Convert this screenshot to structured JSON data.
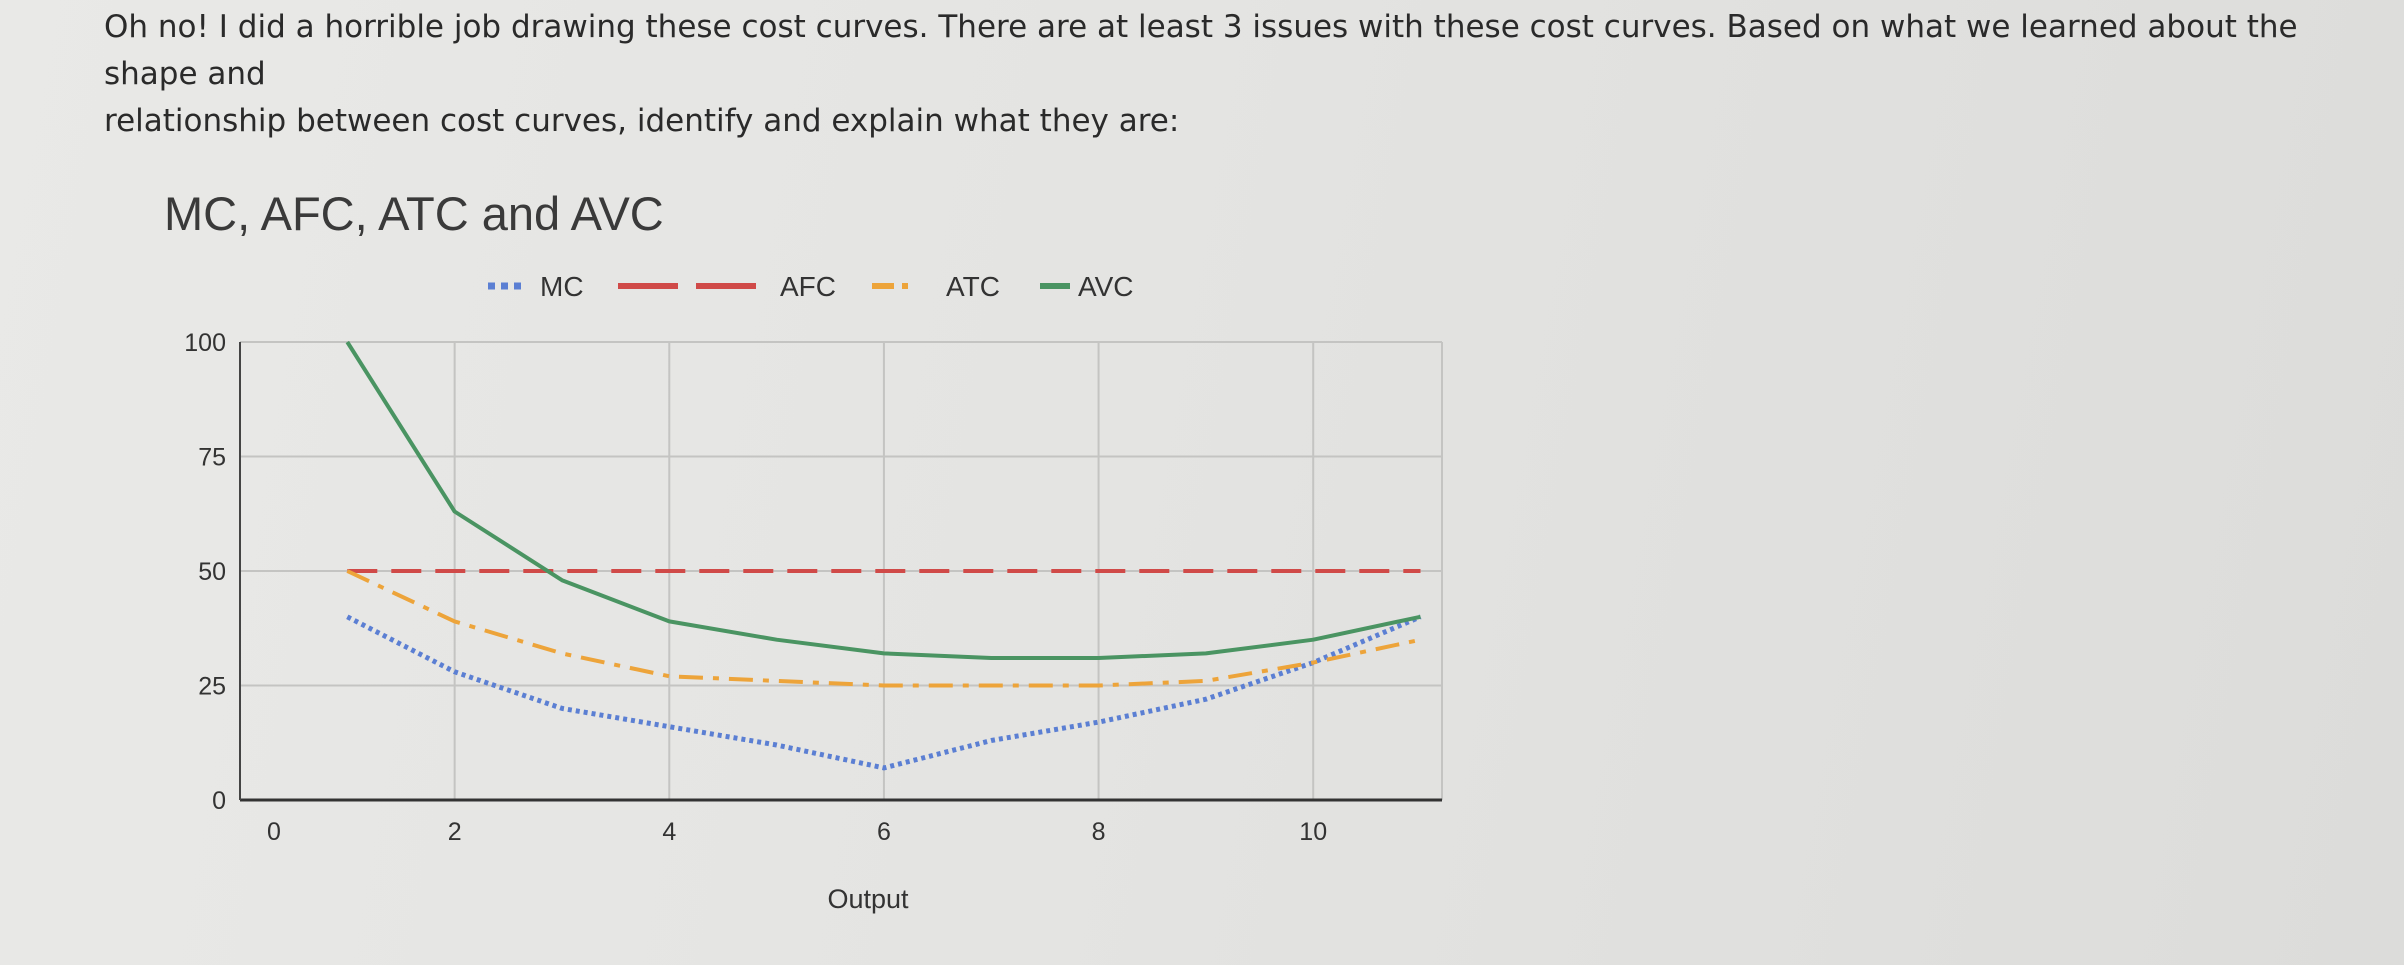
{
  "question": {
    "line1": "Oh no! I did a horrible job drawing these cost curves. There are at least 3 issues with these cost curves. Based on what we learned about the shape and",
    "line2": "relationship between cost curves, identify and explain what they are:"
  },
  "chart_data": {
    "type": "line",
    "title": "MC, AFC, ATC and AVC",
    "xlabel": "Output",
    "ylabel": "",
    "xlim": [
      0,
      11.2
    ],
    "ylim": [
      0,
      100
    ],
    "x_ticks": [
      0,
      2,
      4,
      6,
      8,
      10
    ],
    "y_ticks": [
      0,
      25,
      50,
      75,
      100
    ],
    "grid": true,
    "legend_position": "top",
    "series": [
      {
        "name": "MC",
        "color": "#5b7fd3",
        "style": "dotted",
        "x": [
          1,
          2,
          3,
          4,
          5,
          6,
          7,
          8,
          9,
          10,
          11
        ],
        "y": [
          40,
          28,
          20,
          16,
          12,
          7,
          13,
          17,
          22,
          30,
          40
        ]
      },
      {
        "name": "AFC",
        "color": "#d04a48",
        "style": "dashed",
        "x": [
          1,
          2,
          3,
          4,
          5,
          6,
          7,
          8,
          9,
          10,
          11
        ],
        "y": [
          50,
          50,
          50,
          50,
          50,
          50,
          50,
          50,
          50,
          50,
          50
        ]
      },
      {
        "name": "ATC",
        "color": "#eda43a",
        "style": "dashdot",
        "x": [
          1,
          2,
          3,
          4,
          5,
          6,
          7,
          8,
          9,
          10,
          11
        ],
        "y": [
          50,
          39,
          32,
          27,
          26,
          25,
          25,
          25,
          26,
          30,
          35
        ]
      },
      {
        "name": "AVC",
        "color": "#4a9462",
        "style": "solid",
        "x": [
          1,
          2,
          3,
          4,
          5,
          6,
          7,
          8,
          9,
          10,
          11
        ],
        "y": [
          100,
          63,
          48,
          39,
          35,
          32,
          31,
          31,
          32,
          35,
          40
        ]
      }
    ]
  }
}
